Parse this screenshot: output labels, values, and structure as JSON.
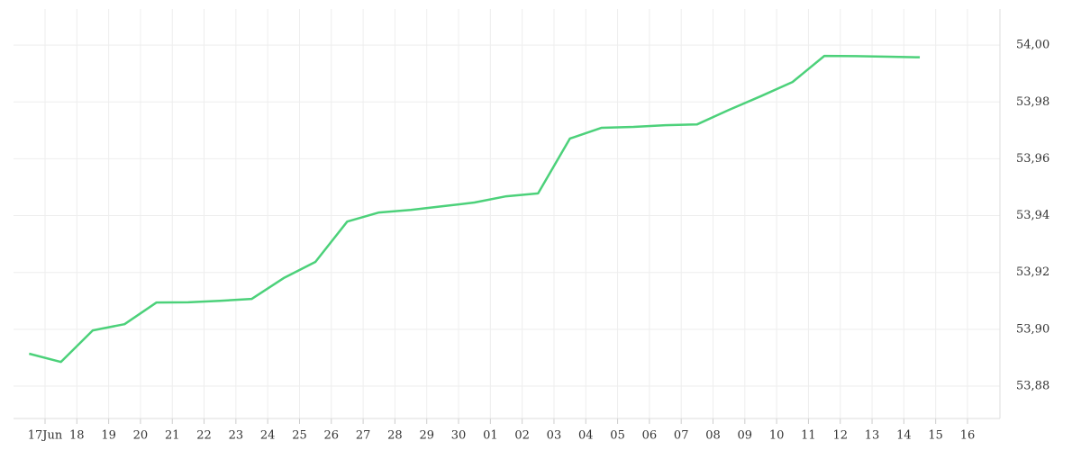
{
  "chart_data": {
    "type": "line",
    "categories": [
      "17Jun",
      "18",
      "19",
      "20",
      "21",
      "22",
      "23",
      "24",
      "25",
      "26",
      "27",
      "28",
      "29",
      "30",
      "01",
      "02",
      "03",
      "04",
      "05",
      "06",
      "07",
      "08",
      "09",
      "10",
      "11",
      "12",
      "13",
      "14",
      "15",
      "16"
    ],
    "series": [
      {
        "color": "#4cd17a",
        "values": [
          53.8914,
          53.8885,
          53.8996,
          53.9018,
          53.9094,
          53.9095,
          53.91,
          53.9107,
          53.918,
          53.9237,
          53.9379,
          53.9411,
          53.942,
          53.9433,
          53.9446,
          53.9468,
          53.9478,
          53.9671,
          53.9709,
          53.9712,
          53.9718,
          53.9721,
          53.9772,
          53.982,
          53.987,
          53.9962,
          53.9961,
          53.9959,
          53.9957,
          null
        ]
      }
    ],
    "ylim": [
      53.8686,
      54.0127
    ],
    "yticks": [
      {
        "value": 53.88,
        "label": "53,88"
      },
      {
        "value": 53.9,
        "label": "53,90"
      },
      {
        "value": 53.92,
        "label": "53,92"
      },
      {
        "value": 53.94,
        "label": "53,94"
      },
      {
        "value": 53.96,
        "label": "53,96"
      },
      {
        "value": 53.98,
        "label": "53,98"
      },
      {
        "value": 54.0,
        "label": "54,00"
      }
    ],
    "grid": true
  }
}
